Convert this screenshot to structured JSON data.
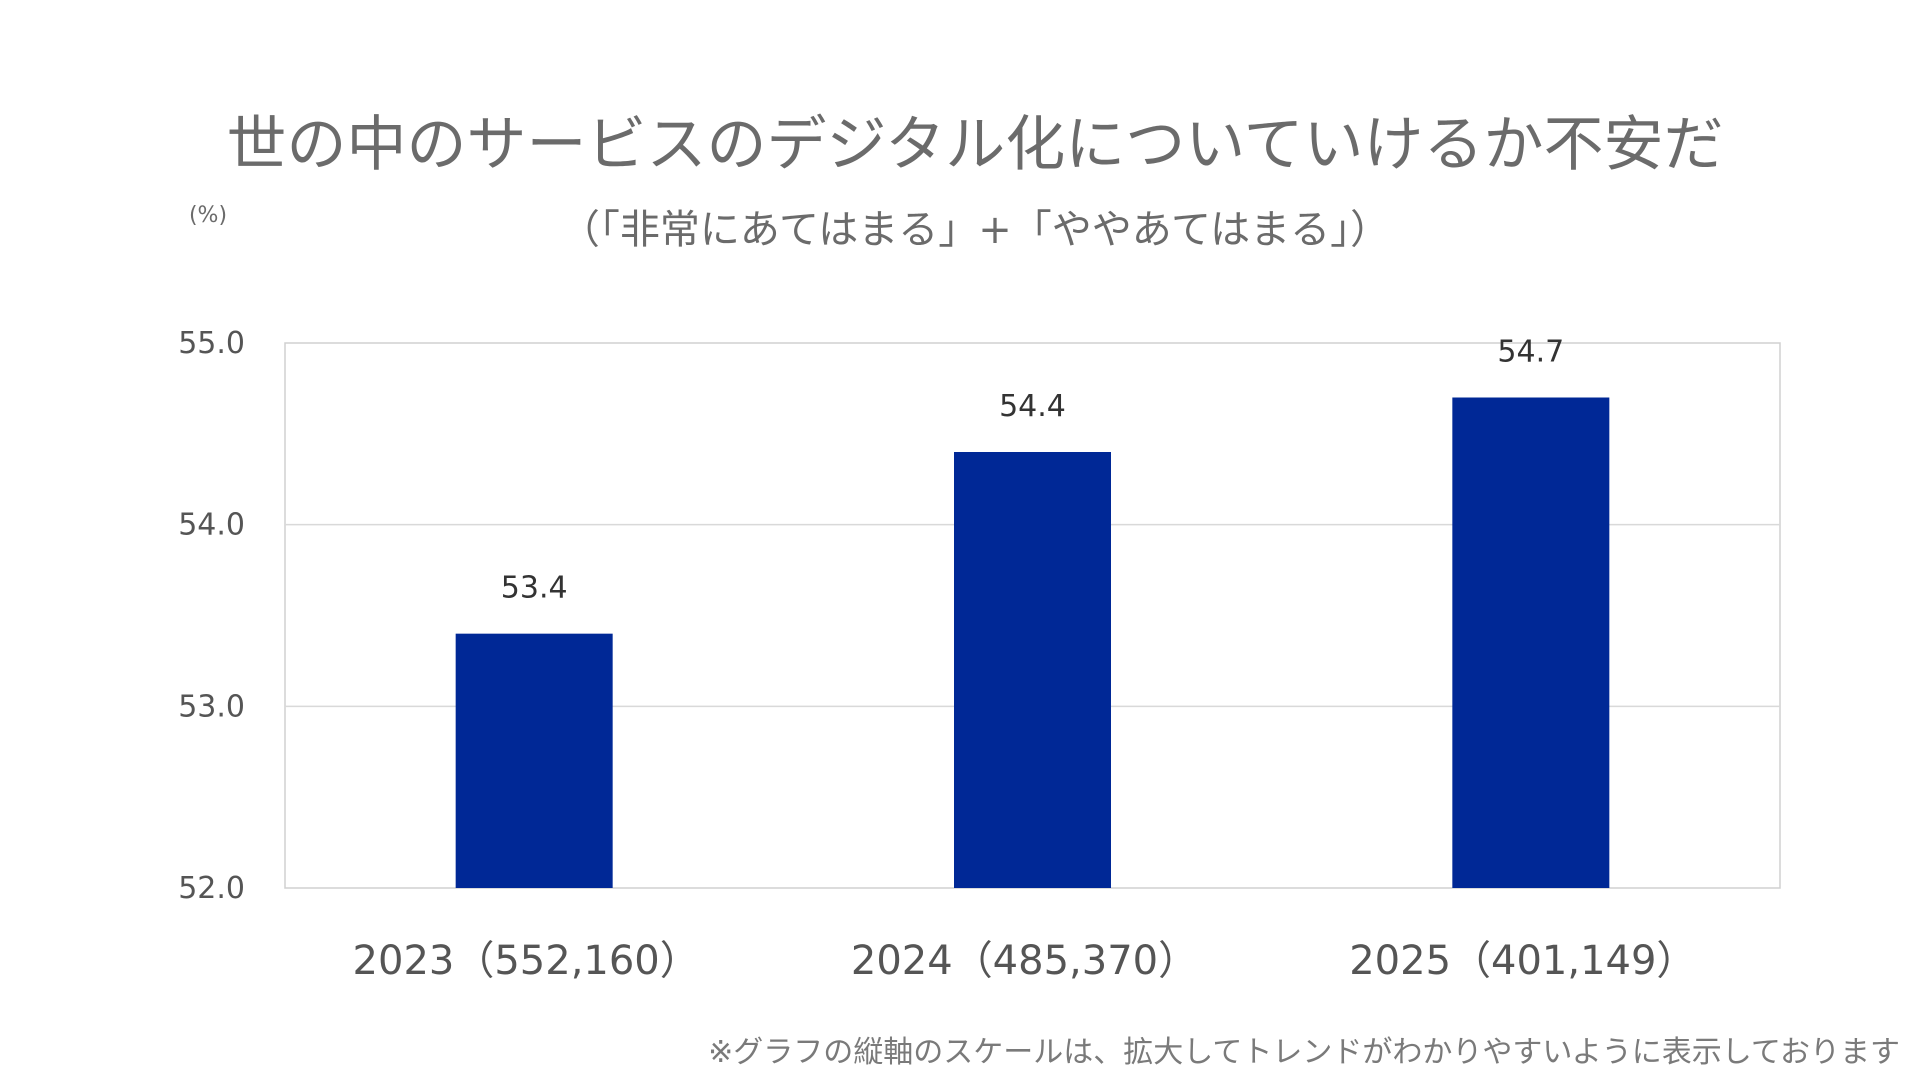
{
  "chart_data": {
    "type": "bar",
    "title": "世の中のサービスのデジタル化についていけるか不安だ",
    "subtitle": "（「非常にあてはまる」+「ややあてはまる」）",
    "ylabel": "(%)",
    "categories": [
      "2023（552,160）",
      "2024（485,370）",
      "2025（401,149）"
    ],
    "values": [
      53.4,
      54.4,
      54.7
    ],
    "data_labels": [
      "53.4",
      "54.4",
      "54.7"
    ],
    "ylim": [
      52.0,
      55.0
    ],
    "yticks": [
      52.0,
      53.0,
      54.0,
      55.0
    ],
    "ytick_labels": [
      "52.0",
      "53.0",
      "54.0",
      "55.0"
    ],
    "grid": true,
    "bar_color": "#002896",
    "note": "※グラフの縦軸のスケールは、拡大してトレンドがわかりやすいように表示しております"
  }
}
